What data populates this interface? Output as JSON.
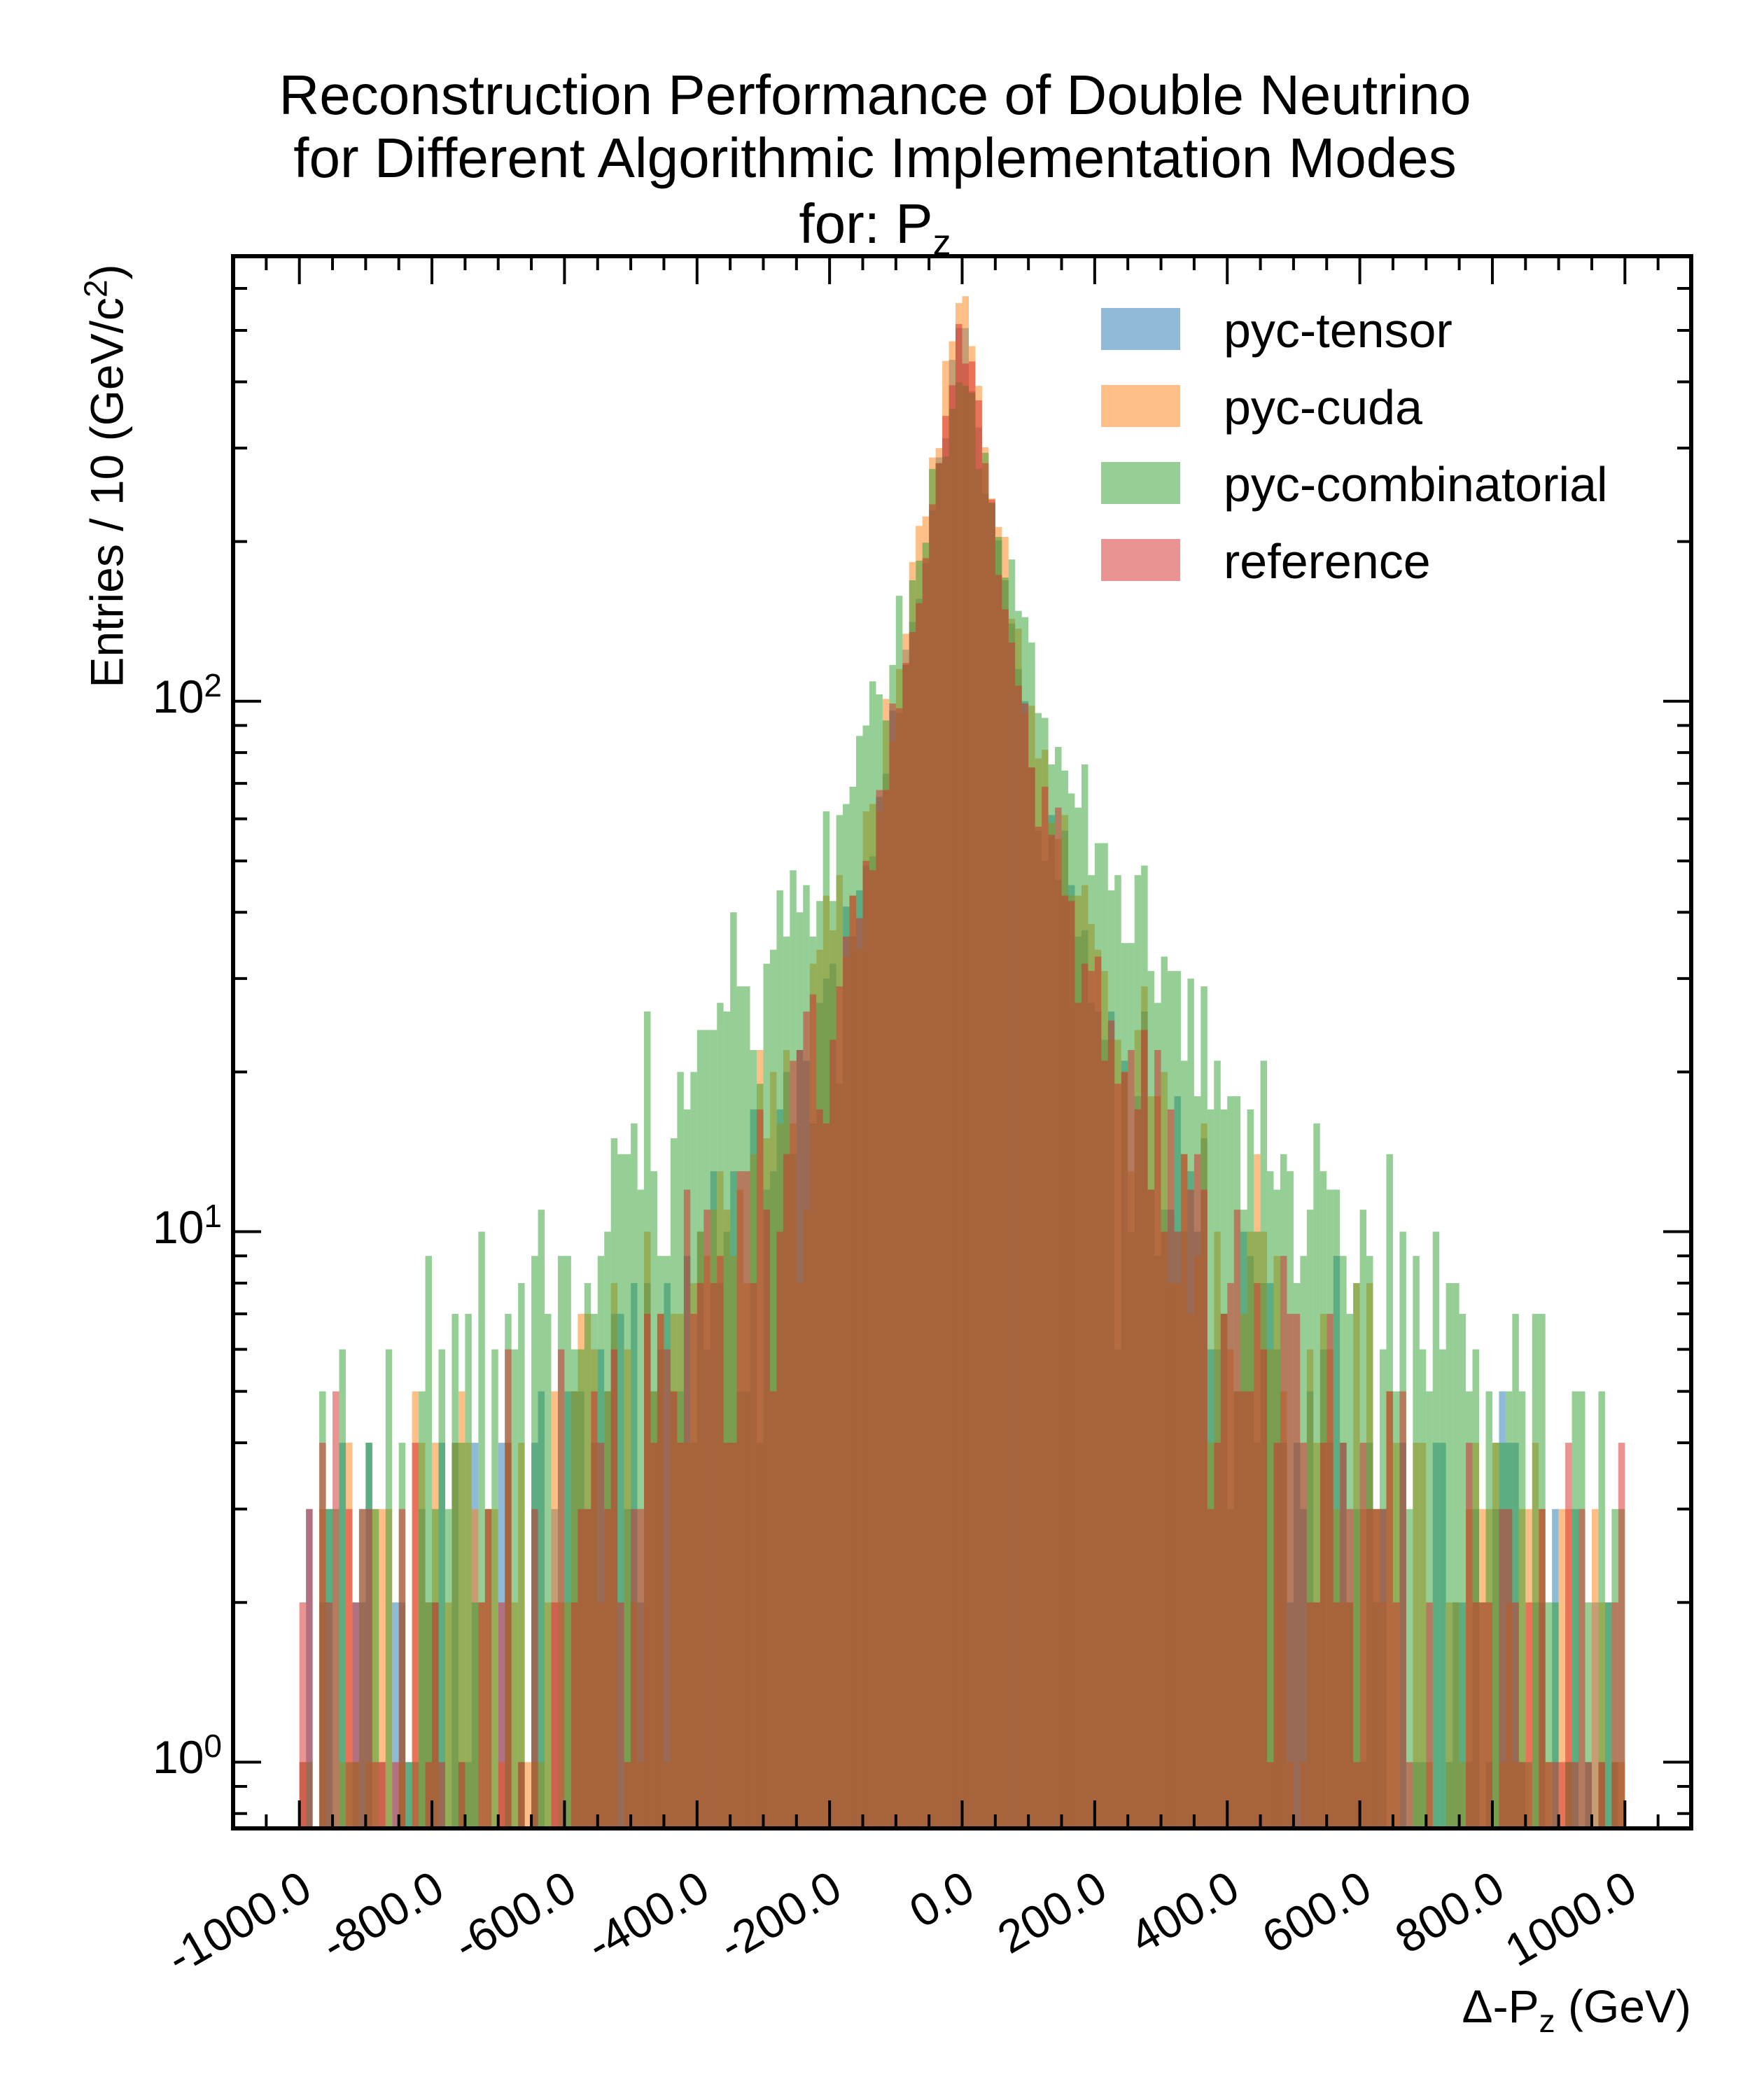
{
  "chart_data": {
    "type": "bar",
    "title_lines": [
      "Reconstruction Performance of Double Neutrino",
      "for Different Algorithmic Implementation Modes",
      "for: P"
    ],
    "title_subscript": "z",
    "xlabel": "Δ-P",
    "xlabel_subscript": "z",
    "xlabel_unit": " (GeV)",
    "ylabel": "Entries  / 10 (GeV/c",
    "ylabel_superscript": "2",
    "ylabel_tail": ")",
    "yscale": "log",
    "ylim": [
      0.75,
      690
    ],
    "xlim": [
      -1100,
      1100
    ],
    "grid": false,
    "legend_position": "top-right",
    "bin_width": 10,
    "bin_range": [
      -1000,
      1000
    ],
    "x_ticks": [
      -1000,
      -800,
      -600,
      -400,
      -200,
      0,
      200,
      400,
      600,
      800,
      1000
    ],
    "x_tick_labels": [
      "-1000.0",
      "-800.0",
      "-600.0",
      "-400.0",
      "-200.0",
      "0.0",
      "200.0",
      "400.0",
      "600.0",
      "800.0",
      "1000.0"
    ],
    "y_ticks": [
      1,
      10,
      100
    ],
    "y_tick_base": "10",
    "y_tick_exponents": [
      "0",
      "1",
      "2"
    ],
    "series": [
      {
        "name": "pyc-tensor",
        "color": "#1f77b4",
        "alpha": 0.5,
        "peak_x": 0,
        "peak_value": 470,
        "core_decay_length": 45,
        "tail_decay_length": 160,
        "tail_amplitude": 70,
        "tail_floor": 1.5
      },
      {
        "name": "pyc-cuda",
        "color": "#ff7f0e",
        "alpha": 0.5,
        "peak_x": 0,
        "peak_value": 560,
        "core_decay_length": 45,
        "tail_decay_length": 165,
        "tail_amplitude": 75,
        "tail_floor": 1.6
      },
      {
        "name": "pyc-combinatorial",
        "color": "#2ca02c",
        "alpha": 0.5,
        "peak_x": 0,
        "peak_value": 330,
        "core_decay_length": 55,
        "tail_decay_length": 210,
        "tail_amplitude": 110,
        "tail_floor": 2.0
      },
      {
        "name": "reference",
        "color": "#d62728",
        "alpha": 0.5,
        "peak_x": 0,
        "peak_value": 480,
        "core_decay_length": 45,
        "tail_decay_length": 160,
        "tail_amplitude": 70,
        "tail_floor": 1.5
      }
    ]
  }
}
